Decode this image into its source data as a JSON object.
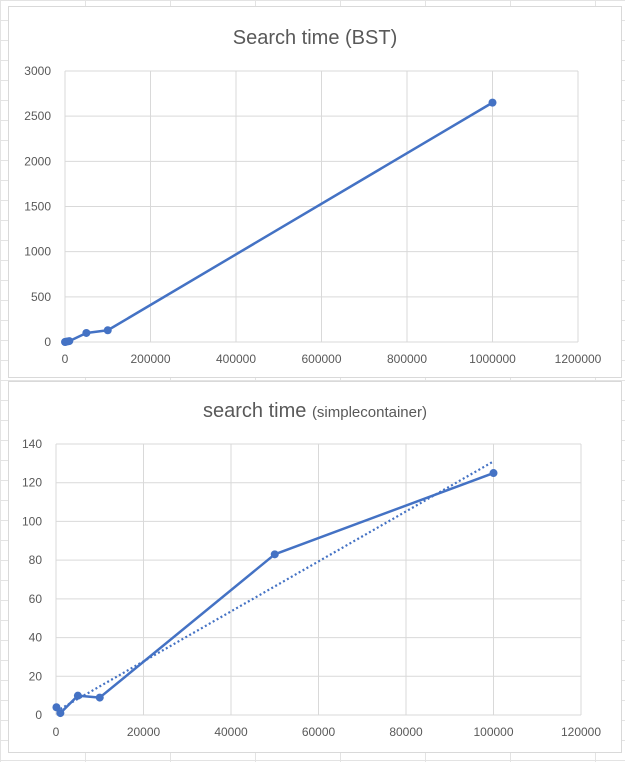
{
  "chart_data": [
    {
      "type": "line",
      "title": "Search time (BST)",
      "xlabel": "",
      "ylabel": "",
      "xlim": [
        0,
        1200000
      ],
      "ylim": [
        0,
        3000
      ],
      "x_ticks": [
        "0",
        "200000",
        "400000",
        "600000",
        "800000",
        "1000000",
        "1200000"
      ],
      "y_ticks": [
        "0",
        "500",
        "1000",
        "1500",
        "2000",
        "2500",
        "3000"
      ],
      "grid": true,
      "legend": "none",
      "color": "#4472c4",
      "series": [
        {
          "x": [
            100,
            1000,
            5000,
            10000,
            50000,
            100000,
            1000000
          ],
          "y": [
            0,
            2,
            5,
            10,
            100,
            130,
            2650
          ]
        }
      ]
    },
    {
      "type": "line",
      "title": "search time",
      "subtitle": "(simplecontainer)",
      "xlabel": "",
      "ylabel": "",
      "xlim": [
        0,
        120000
      ],
      "ylim": [
        0,
        140
      ],
      "x_ticks": [
        "0",
        "20000",
        "40000",
        "60000",
        "80000",
        "100000",
        "120000"
      ],
      "y_ticks": [
        "0",
        "20",
        "40",
        "60",
        "80",
        "100",
        "120",
        "140"
      ],
      "grid": true,
      "legend": "none",
      "color": "#4472c4",
      "series": [
        {
          "x": [
            100,
            1000,
            5000,
            10000,
            50000,
            100000
          ],
          "y": [
            4,
            1,
            10,
            9,
            83,
            125
          ]
        }
      ],
      "trendline": {
        "style": "dotted",
        "x": [
          100,
          100000
        ],
        "y": [
          2,
          131
        ]
      }
    }
  ]
}
